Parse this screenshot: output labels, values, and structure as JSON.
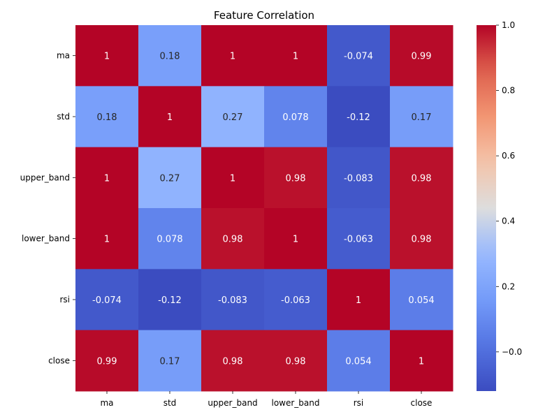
{
  "chart_data": {
    "type": "heatmap",
    "title": "Feature Correlation",
    "xlabel": "",
    "ylabel": "",
    "row_labels": [
      "ma",
      "std",
      "upper_band",
      "lower_band",
      "rsi",
      "close"
    ],
    "col_labels": [
      "ma",
      "std",
      "upper_band",
      "lower_band",
      "rsi",
      "close"
    ],
    "values": [
      [
        1,
        0.18,
        1,
        1,
        -0.074,
        0.99
      ],
      [
        0.18,
        1,
        0.27,
        0.078,
        -0.12,
        0.17
      ],
      [
        1,
        0.27,
        1,
        0.98,
        -0.083,
        0.98
      ],
      [
        1,
        0.078,
        0.98,
        1,
        -0.063,
        0.98
      ],
      [
        -0.074,
        -0.12,
        -0.083,
        -0.063,
        1,
        0.054
      ],
      [
        0.99,
        0.17,
        0.98,
        0.98,
        0.054,
        1
      ]
    ],
    "labels": [
      [
        "1",
        "0.18",
        "1",
        "1",
        "-0.074",
        "0.99"
      ],
      [
        "0.18",
        "1",
        "0.27",
        "0.078",
        "-0.12",
        "0.17"
      ],
      [
        "1",
        "0.27",
        "1",
        "0.98",
        "-0.083",
        "0.98"
      ],
      [
        "1",
        "0.078",
        "0.98",
        "1",
        "-0.063",
        "0.98"
      ],
      [
        "-0.074",
        "-0.12",
        "-0.083",
        "-0.063",
        "1",
        "0.054"
      ],
      [
        "0.99",
        "0.17",
        "0.98",
        "0.98",
        "0.054",
        "1"
      ]
    ],
    "colormap": "coolwarm",
    "colorbar": {
      "vmin": -0.12,
      "vmax": 1.0,
      "ticks": [
        -0.0,
        0.2,
        0.4,
        0.6,
        0.8,
        1.0
      ],
      "tick_labels": [
        "−0.0",
        "0.2",
        "0.4",
        "0.6",
        "0.8",
        "1.0"
      ]
    },
    "grid": false,
    "legend": "colorbar-right"
  }
}
